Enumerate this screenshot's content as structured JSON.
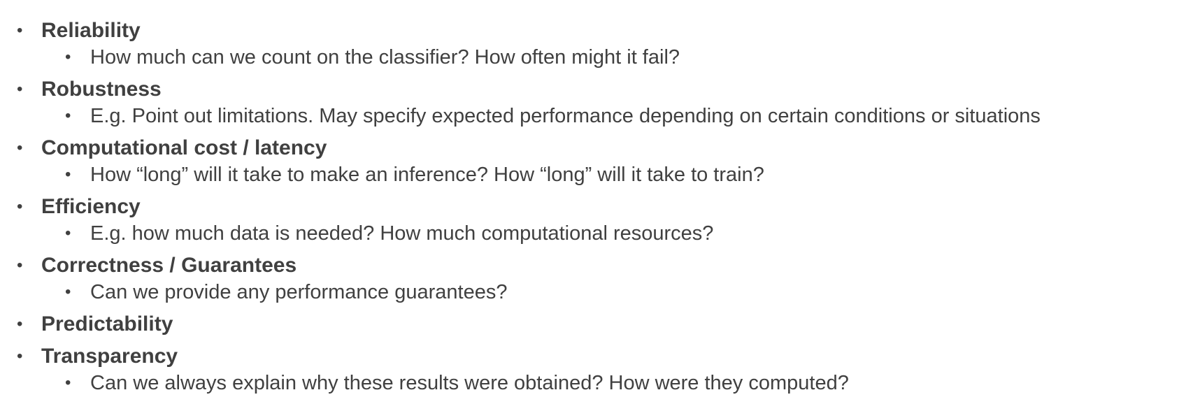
{
  "items": [
    {
      "title": "Reliability",
      "detail": "How much can we count on the classifier? How often might it fail?"
    },
    {
      "title": "Robustness",
      "detail": "E.g. Point out limitations. May specify expected performance depending on certain conditions or situations"
    },
    {
      "title": "Computational cost / latency",
      "detail": "How “long” will it take to make an inference? How “long” will it take to train?"
    },
    {
      "title": "Efficiency",
      "detail": "E.g. how much data is needed? How much computational resources?"
    },
    {
      "title": "Correctness / Guarantees",
      "detail": "Can we provide any performance guarantees?"
    },
    {
      "title": "Predictability",
      "detail": null
    },
    {
      "title": "Transparency",
      "detail": "Can we always explain why these results were obtained? How were they computed?"
    }
  ],
  "bullet_glyph": "•"
}
